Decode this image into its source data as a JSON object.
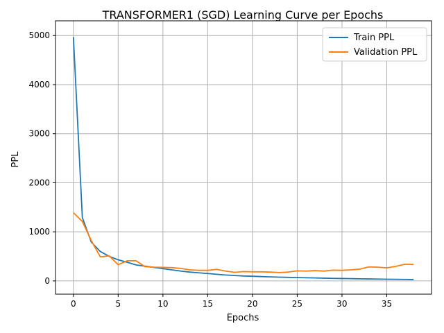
{
  "chart_data": {
    "type": "line",
    "title": "TRANSFORMER1 (SGD) Learning Curve per Epochs",
    "xlabel": "Epochs",
    "ylabel": "PPL",
    "xlim": [
      -2,
      40
    ],
    "ylim": [
      -270,
      5300
    ],
    "xticks": [
      0,
      5,
      10,
      15,
      20,
      25,
      30,
      35
    ],
    "yticks": [
      0,
      1000,
      2000,
      3000,
      4000,
      5000
    ],
    "grid": true,
    "legend_position": "top-right",
    "series": [
      {
        "name": "Train PPL",
        "color": "#1f77b4",
        "x": [
          0,
          1,
          2,
          3,
          4,
          5,
          6,
          7,
          8,
          9,
          10,
          11,
          12,
          13,
          14,
          15,
          16,
          17,
          18,
          19,
          20,
          21,
          22,
          23,
          24,
          25,
          26,
          27,
          28,
          29,
          30,
          31,
          32,
          33,
          34,
          35,
          36,
          37,
          38
        ],
        "values": [
          4970,
          1290,
          790,
          600,
          500,
          430,
          380,
          325,
          300,
          275,
          250,
          225,
          200,
          180,
          165,
          150,
          135,
          120,
          110,
          100,
          95,
          88,
          82,
          76,
          72,
          68,
          64,
          60,
          56,
          52,
          49,
          46,
          43,
          40,
          37,
          34,
          32,
          30,
          28
        ]
      },
      {
        "name": "Validation PPL",
        "color": "#ff7f0e",
        "x": [
          0,
          1,
          2,
          3,
          4,
          5,
          6,
          7,
          8,
          9,
          10,
          11,
          12,
          13,
          14,
          15,
          16,
          17,
          18,
          19,
          20,
          21,
          22,
          23,
          24,
          25,
          26,
          27,
          28,
          29,
          30,
          31,
          32,
          33,
          34,
          35,
          36,
          37,
          38
        ],
        "values": [
          1390,
          1210,
          820,
          490,
          510,
          330,
          410,
          410,
          290,
          280,
          275,
          270,
          255,
          225,
          215,
          215,
          235,
          200,
          175,
          190,
          185,
          185,
          180,
          170,
          180,
          205,
          200,
          210,
          200,
          220,
          215,
          225,
          240,
          285,
          280,
          265,
          295,
          340,
          335
        ]
      }
    ]
  }
}
